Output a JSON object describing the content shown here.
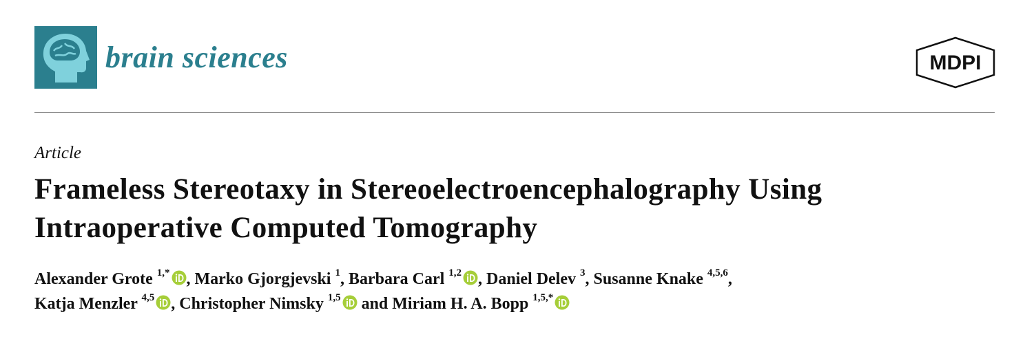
{
  "journal": {
    "name": "brain sciences",
    "publisher": "MDPI"
  },
  "article": {
    "type": "Article",
    "title": "Frameless Stereotaxy in Stereoelectroencephalography Using Intraoperative Computed Tomography",
    "authors": [
      {
        "name": "Alexander Grote",
        "affiliations": "1,*",
        "orcid": true
      },
      {
        "name": "Marko Gjorgjevski",
        "affiliations": "1",
        "orcid": false
      },
      {
        "name": "Barbara Carl",
        "affiliations": "1,2",
        "orcid": true
      },
      {
        "name": "Daniel Delev",
        "affiliations": "3",
        "orcid": false
      },
      {
        "name": "Susanne Knake",
        "affiliations": "4,5,6",
        "orcid": false
      },
      {
        "name": "Katja Menzler",
        "affiliations": "4,5",
        "orcid": true
      },
      {
        "name": "Christopher Nimsky",
        "affiliations": "1,5",
        "orcid": true
      },
      {
        "name": "Miriam H. A. Bopp",
        "affiliations": "1,5,*",
        "orcid": true
      }
    ],
    "separators": [
      ",",
      ",",
      ",",
      ",",
      ",",
      ",",
      "and"
    ]
  }
}
